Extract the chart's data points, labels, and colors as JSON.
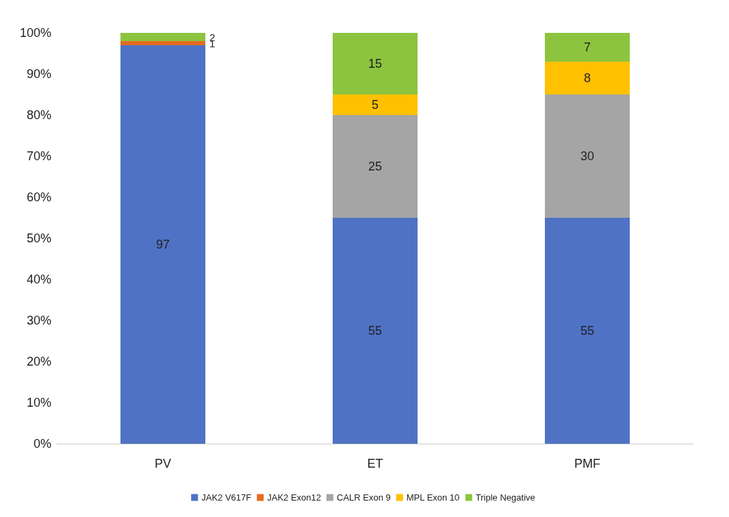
{
  "chart_data": {
    "type": "bar",
    "stacked": true,
    "categories": [
      "PV",
      "ET",
      "PMF"
    ],
    "series": [
      {
        "name": "JAK2 V617F",
        "color": "#4f72c4",
        "values": [
          97,
          55,
          55
        ]
      },
      {
        "name": "JAK2 Exon12",
        "color": "#e46c22",
        "values": [
          1,
          null,
          null
        ]
      },
      {
        "name": "CALR Exon 9",
        "color": "#a5a5a5",
        "values": [
          null,
          25,
          30
        ]
      },
      {
        "name": "MPL Exon 10",
        "color": "#ffc000",
        "values": [
          null,
          5,
          8
        ]
      },
      {
        "name": "Triple Negative",
        "color": "#8cc43f",
        "values": [
          2,
          15,
          7
        ]
      }
    ],
    "ylim": [
      0,
      100
    ],
    "yticks": [
      {
        "value": 0,
        "label": "0%"
      },
      {
        "value": 10,
        "label": "10%"
      },
      {
        "value": 20,
        "label": "20%"
      },
      {
        "value": 30,
        "label": "30%"
      },
      {
        "value": 40,
        "label": "40%"
      },
      {
        "value": 50,
        "label": "50%"
      },
      {
        "value": 60,
        "label": "60%"
      },
      {
        "value": 70,
        "label": "70%"
      },
      {
        "value": 80,
        "label": "80%"
      },
      {
        "value": 90,
        "label": "90%"
      },
      {
        "value": 100,
        "label": "100%"
      }
    ],
    "data_labels": true,
    "grid": false,
    "legend": "bottom"
  }
}
